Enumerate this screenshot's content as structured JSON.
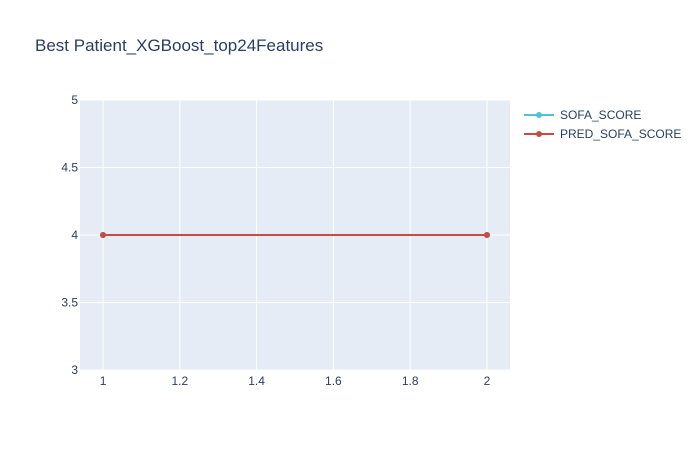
{
  "chart_data": {
    "type": "line",
    "title": "Best Patient_XGBoost_top24Features",
    "xlabel": "",
    "ylabel": "",
    "x": [
      1,
      2
    ],
    "xlim": [
      0.94,
      2.06
    ],
    "ylim": [
      3,
      5
    ],
    "xticks": [
      "1",
      "1.2",
      "1.4",
      "1.6",
      "1.8",
      "2"
    ],
    "xtick_values": [
      1,
      1.2,
      1.4,
      1.6,
      1.8,
      2
    ],
    "yticks": [
      "3",
      "3.5",
      "4",
      "4.5",
      "5"
    ],
    "ytick_values": [
      3,
      3.5,
      4,
      4.5,
      5
    ],
    "grid": true,
    "legend_position": "top-right",
    "series": [
      {
        "name": "SOFA_SCORE",
        "values": [
          4,
          4
        ],
        "color": "#4fc3d0"
      },
      {
        "name": "PRED_SOFA_SCORE",
        "values": [
          4,
          4
        ],
        "color": "#c84a40"
      }
    ],
    "plot_background": "#e5ecf6"
  }
}
